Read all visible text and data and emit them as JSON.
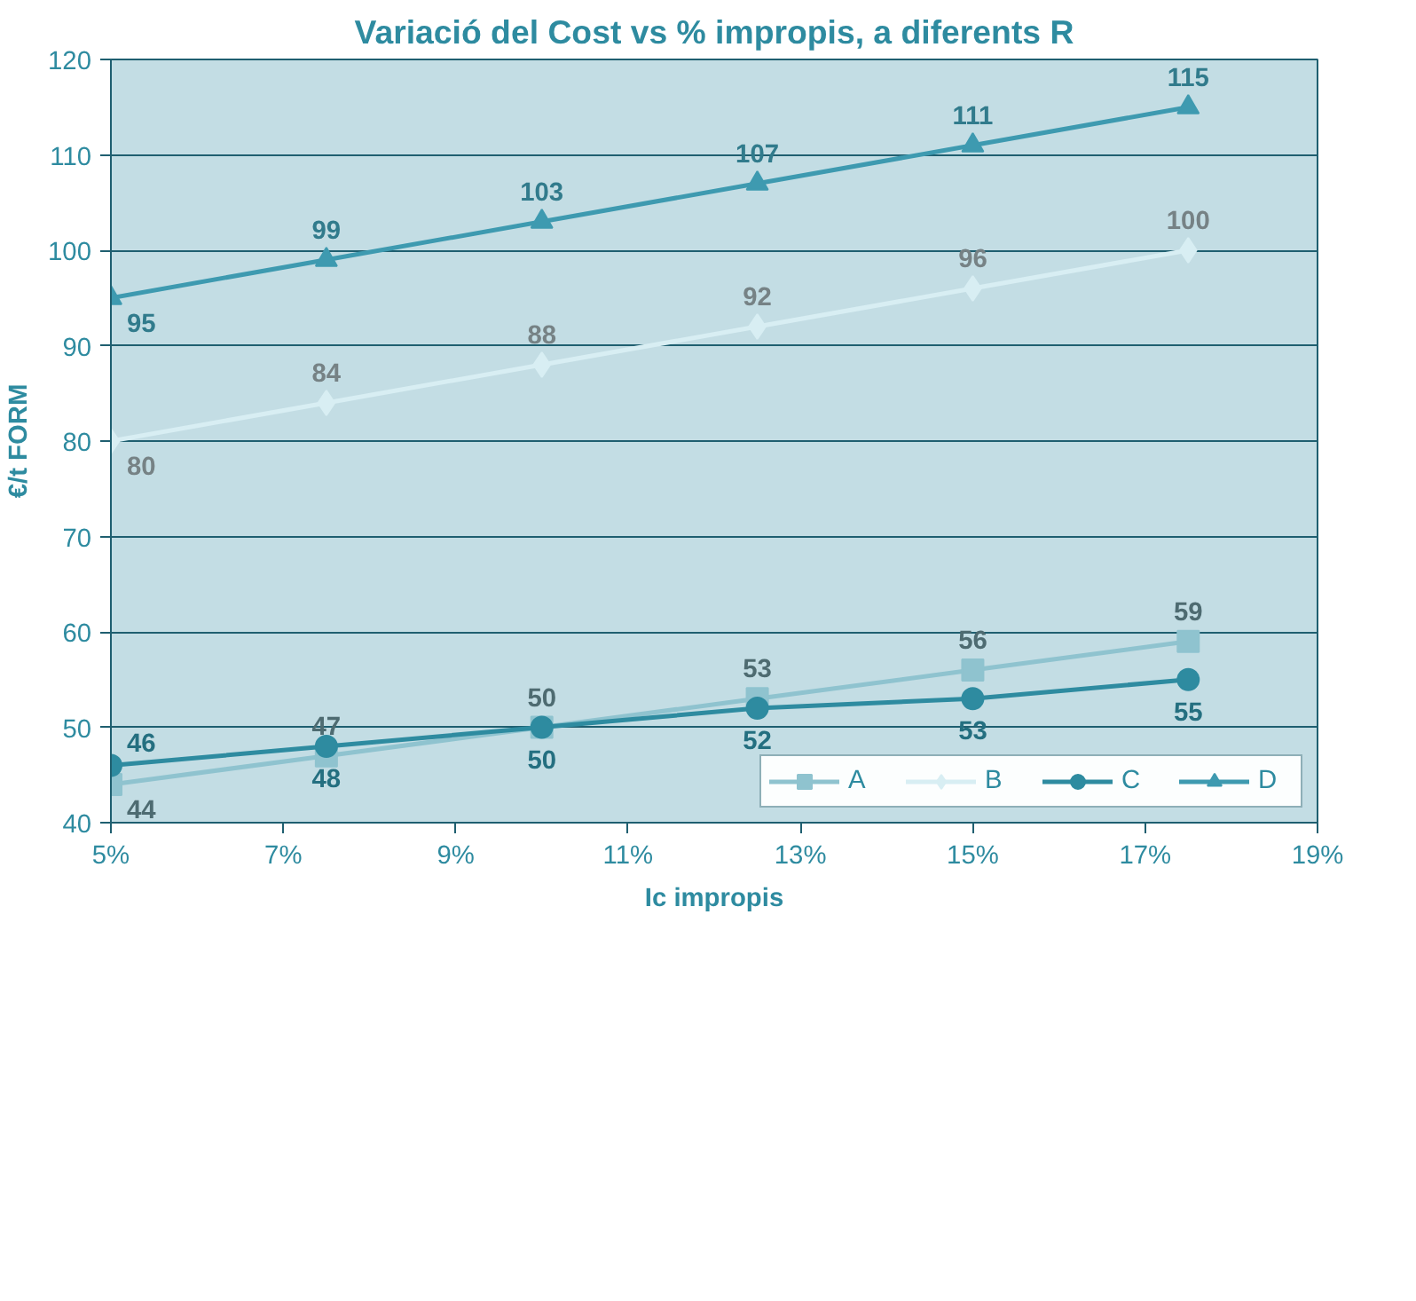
{
  "chart_data": {
    "type": "line",
    "title": "Variació del Cost vs % impropis, a diferents R",
    "xlabel": "Ic impropis",
    "ylabel": "€/t FORM",
    "x": [
      5,
      7.5,
      10,
      12.5,
      15,
      17.5
    ],
    "series": [
      {
        "name": "A",
        "color": "#8fc3cf",
        "marker": "square",
        "values": [
          44,
          47,
          50,
          53,
          56,
          59
        ]
      },
      {
        "name": "B",
        "color": "#d8eef3",
        "marker": "diamond",
        "values": [
          80,
          84,
          88,
          92,
          96,
          100
        ]
      },
      {
        "name": "C",
        "color": "#2e8ba0",
        "marker": "circle",
        "values": [
          46,
          48,
          50,
          52,
          53,
          55
        ]
      },
      {
        "name": "D",
        "color": "#3e9ab0",
        "marker": "triangle",
        "values": [
          95,
          99,
          103,
          107,
          111,
          115
        ]
      }
    ],
    "xlim": [
      5,
      19
    ],
    "xticks": [
      {
        "value": 5,
        "label": "5%"
      },
      {
        "value": 7,
        "label": "7%"
      },
      {
        "value": 9,
        "label": "9%"
      },
      {
        "value": 11,
        "label": "11%"
      },
      {
        "value": 13,
        "label": "13%"
      },
      {
        "value": 15,
        "label": "15%"
      },
      {
        "value": 17,
        "label": "17%"
      },
      {
        "value": 19,
        "label": "19%"
      }
    ],
    "ylim": [
      40,
      120
    ],
    "yticks": [
      40,
      50,
      60,
      70,
      80,
      90,
      100,
      110,
      120
    ],
    "grid": "y",
    "legend": "bottom right",
    "data_labels": true,
    "line_style": "solid"
  }
}
